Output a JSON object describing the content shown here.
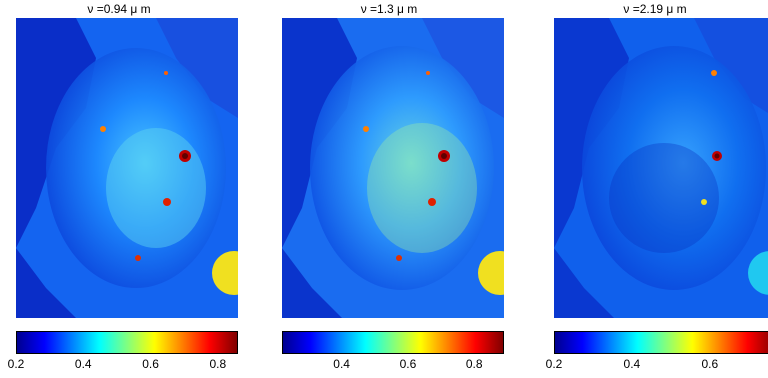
{
  "panels": [
    {
      "title": "ν =0.94 μ m",
      "ticks": [
        {
          "label": "0.2",
          "value": 0.2
        },
        {
          "label": "0.4",
          "value": 0.4
        },
        {
          "label": "0.6",
          "value": 0.6
        },
        {
          "label": "0.8",
          "value": 0.8
        }
      ],
      "range": [
        0.2,
        0.86
      ]
    },
    {
      "title": "ν =1.3 μ m",
      "ticks": [
        {
          "label": "0.4",
          "value": 0.4
        },
        {
          "label": "0.6",
          "value": 0.6
        },
        {
          "label": "0.8",
          "value": 0.8
        }
      ],
      "range": [
        0.22,
        0.89
      ]
    },
    {
      "title": "ν =2.19 μ m",
      "ticks": [
        {
          "label": "0.2",
          "value": 0.2
        },
        {
          "label": "0.4",
          "value": 0.4
        },
        {
          "label": "0.6",
          "value": 0.6
        }
      ],
      "range": [
        0.2,
        0.77
      ]
    }
  ],
  "colormap": "jet",
  "colormap_stops": [
    "#00008f",
    "#0000ff",
    "#0080ff",
    "#00ffff",
    "#80ff80",
    "#ffff00",
    "#ff8000",
    "#ff0000",
    "#800000"
  ]
}
